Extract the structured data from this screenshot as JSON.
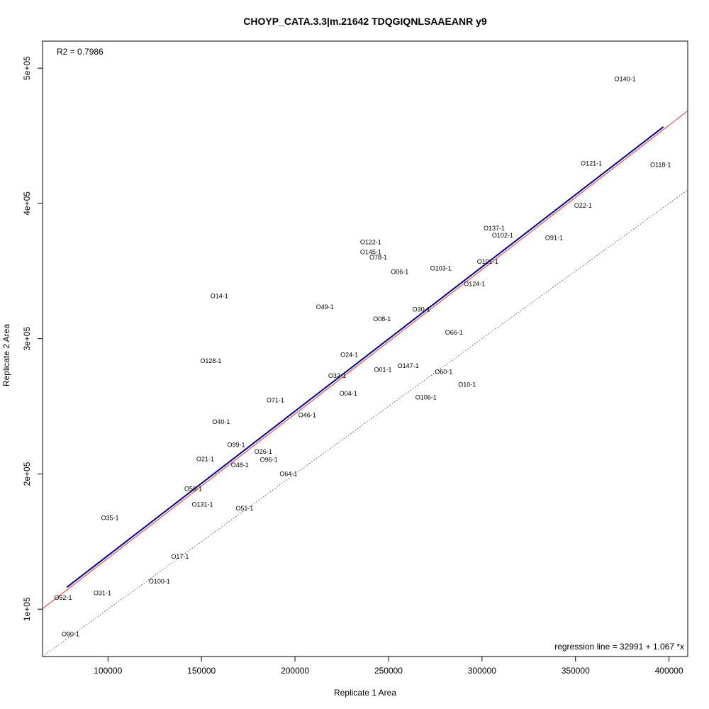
{
  "chart_data": {
    "type": "scatter",
    "title": "CHOYP_CATA.3.3|m.21642 TDQGIQNLSAAEANR y9",
    "xlabel": "Replicate 1 Area",
    "ylabel": "Replicate 2 Area",
    "xlim": [
      65000,
      410000
    ],
    "ylim": [
      65000,
      520000
    ],
    "x_ticks": [
      100000,
      150000,
      200000,
      250000,
      300000,
      350000,
      400000
    ],
    "x_tick_labels": [
      "100000",
      "150000",
      "200000",
      "250000",
      "300000",
      "350000",
      "400000"
    ],
    "y_ticks": [
      100000,
      200000,
      300000,
      400000,
      500000
    ],
    "y_tick_labels": [
      "1e+05",
      "2e+05",
      "3e+05",
      "4e+05",
      "5e+05"
    ],
    "grid": false,
    "r2_text": "R2 = 0.7986",
    "regression_text": "regression line = 32991 + 1.067 *x",
    "regression": {
      "intercept": 32991,
      "slope": 1.067,
      "x_range": [
        78000,
        397000
      ],
      "color": "#00008b"
    },
    "red_line": {
      "intercept": 31000,
      "slope": 1.067,
      "color": "#e8514a"
    },
    "identity_line": {
      "intercept": 0,
      "slope": 1,
      "color": "#555555"
    },
    "points": [
      {
        "label": "O140-1",
        "x": 376500,
        "y": 492000
      },
      {
        "label": "O121-1",
        "x": 358500,
        "y": 429500
      },
      {
        "label": "O118-1",
        "x": 395500,
        "y": 428500
      },
      {
        "label": "O22-1",
        "x": 354000,
        "y": 398500
      },
      {
        "label": "O137-1",
        "x": 306500,
        "y": 381500
      },
      {
        "label": "O102-1",
        "x": 311000,
        "y": 376500
      },
      {
        "label": "O91-1",
        "x": 338500,
        "y": 374500
      },
      {
        "label": "O122-1",
        "x": 240500,
        "y": 371500
      },
      {
        "label": "O145-1",
        "x": 240500,
        "y": 364000
      },
      {
        "label": "O78-1",
        "x": 244500,
        "y": 360000
      },
      {
        "label": "O101-1",
        "x": 303000,
        "y": 357000
      },
      {
        "label": "O103-1",
        "x": 278000,
        "y": 352000
      },
      {
        "label": "O06-1",
        "x": 256000,
        "y": 349500
      },
      {
        "label": "O124-1",
        "x": 296000,
        "y": 340500
      },
      {
        "label": "O14-1",
        "x": 159500,
        "y": 331500
      },
      {
        "label": "O49-1",
        "x": 216000,
        "y": 323500
      },
      {
        "label": "O30-1",
        "x": 267500,
        "y": 321500
      },
      {
        "label": "O08-1",
        "x": 246500,
        "y": 314500
      },
      {
        "label": "O66-1",
        "x": 285000,
        "y": 304500
      },
      {
        "label": "O24-1",
        "x": 229000,
        "y": 288000
      },
      {
        "label": "O128-1",
        "x": 155000,
        "y": 283500
      },
      {
        "label": "O147-1",
        "x": 260500,
        "y": 280000
      },
      {
        "label": "O01-1",
        "x": 247000,
        "y": 277000
      },
      {
        "label": "O60-1",
        "x": 279500,
        "y": 275500
      },
      {
        "label": "O32-1",
        "x": 222500,
        "y": 272500
      },
      {
        "label": "O10-1",
        "x": 292000,
        "y": 266000
      },
      {
        "label": "O04-1",
        "x": 228500,
        "y": 259500
      },
      {
        "label": "O106-1",
        "x": 270000,
        "y": 256500
      },
      {
        "label": "O71-1",
        "x": 189500,
        "y": 254500
      },
      {
        "label": "O46-1",
        "x": 206500,
        "y": 243500
      },
      {
        "label": "O40-1",
        "x": 160500,
        "y": 238500
      },
      {
        "label": "O99-1",
        "x": 168500,
        "y": 221500
      },
      {
        "label": "O26-1",
        "x": 183000,
        "y": 216500
      },
      {
        "label": "O21-1",
        "x": 152000,
        "y": 211000
      },
      {
        "label": "O96-1",
        "x": 186000,
        "y": 210500
      },
      {
        "label": "O48-1",
        "x": 170500,
        "y": 206500
      },
      {
        "label": "O64-1",
        "x": 196500,
        "y": 200000
      },
      {
        "label": "O56-1",
        "x": 145500,
        "y": 189000
      },
      {
        "label": "O131-1",
        "x": 150500,
        "y": 177500
      },
      {
        "label": "O51-1",
        "x": 173000,
        "y": 174500
      },
      {
        "label": "O35-1",
        "x": 101000,
        "y": 167500
      },
      {
        "label": "O17-1",
        "x": 138500,
        "y": 139000
      },
      {
        "label": "O100-1",
        "x": 127500,
        "y": 120500
      },
      {
        "label": "O31-1",
        "x": 97000,
        "y": 112000
      },
      {
        "label": "O52-1",
        "x": 76000,
        "y": 108500
      },
      {
        "label": "O90-1",
        "x": 80000,
        "y": 81500
      }
    ]
  }
}
